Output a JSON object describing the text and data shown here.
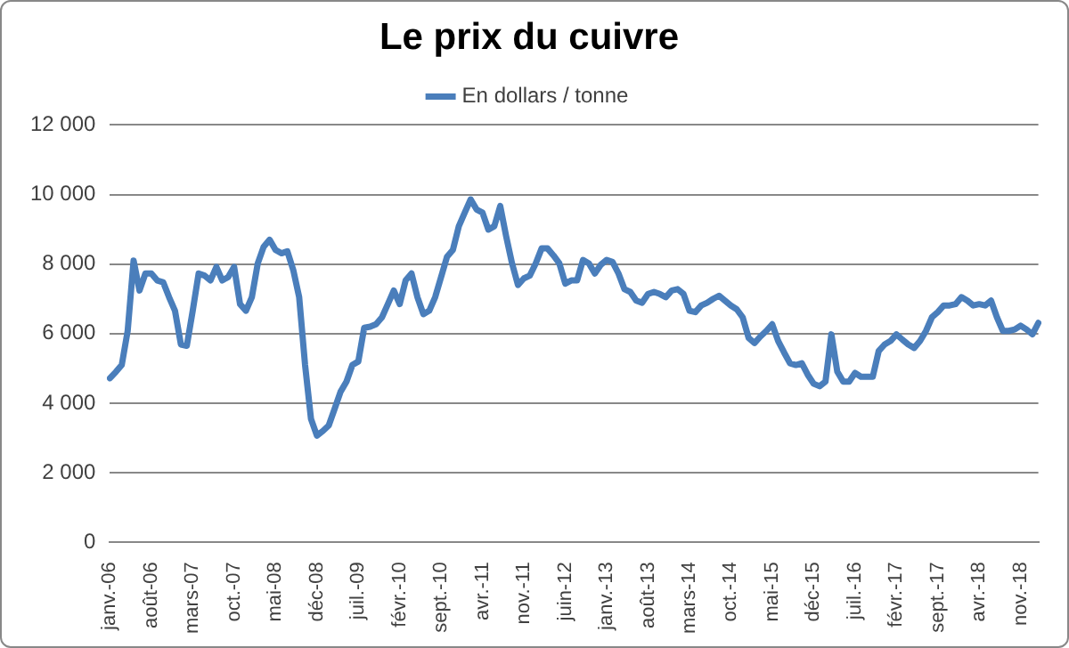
{
  "chart_data": {
    "type": "line",
    "title": "Le prix du cuivre",
    "categories": [
      "janv.-06",
      null,
      null,
      null,
      null,
      null,
      null,
      "août-06",
      null,
      null,
      null,
      null,
      null,
      null,
      "mars-07",
      null,
      null,
      null,
      null,
      null,
      null,
      "oct.-07",
      null,
      null,
      null,
      null,
      null,
      null,
      "mai-08",
      null,
      null,
      null,
      null,
      null,
      null,
      "déc-08",
      null,
      null,
      null,
      null,
      null,
      null,
      "juil.-09",
      null,
      null,
      null,
      null,
      null,
      null,
      "févr.-10",
      null,
      null,
      null,
      null,
      null,
      null,
      "sept.-10",
      null,
      null,
      null,
      null,
      null,
      null,
      "avr.-11",
      null,
      null,
      null,
      null,
      null,
      null,
      "nov.-11",
      null,
      null,
      null,
      null,
      null,
      null,
      "juin-12",
      null,
      null,
      null,
      null,
      null,
      null,
      "janv.-13",
      null,
      null,
      null,
      null,
      null,
      null,
      "août-13",
      null,
      null,
      null,
      null,
      null,
      null,
      "mars-14",
      null,
      null,
      null,
      null,
      null,
      null,
      "oct.-14",
      null,
      null,
      null,
      null,
      null,
      null,
      "mai-15",
      null,
      null,
      null,
      null,
      null,
      null,
      "déc-15",
      null,
      null,
      null,
      null,
      null,
      null,
      "juil.-16",
      null,
      null,
      null,
      null,
      null,
      null,
      "févr.-17",
      null,
      null,
      null,
      null,
      null,
      null,
      "sept.-17",
      null,
      null,
      null,
      null,
      null,
      null,
      "avr.-18",
      null,
      null,
      null,
      null,
      null,
      null,
      "nov.-18",
      null,
      null,
      null
    ],
    "series": [
      {
        "name": "En dollars / tonne",
        "color": "#4a7ebb",
        "values": [
          4720,
          4900,
          5100,
          6080,
          8100,
          7240,
          7730,
          7730,
          7530,
          7480,
          7050,
          6660,
          5690,
          5650,
          6660,
          7730,
          7670,
          7530,
          7920,
          7530,
          7630,
          7920,
          6850,
          6660,
          7050,
          8020,
          8500,
          8700,
          8410,
          8310,
          8370,
          7830,
          7050,
          5100,
          3550,
          3070,
          3200,
          3360,
          3840,
          4330,
          4620,
          5100,
          5200,
          6170,
          6200,
          6270,
          6470,
          6850,
          7240,
          6850,
          7530,
          7730,
          7050,
          6560,
          6660,
          7050,
          7630,
          8210,
          8410,
          9090,
          9480,
          9860,
          9570,
          9480,
          8990,
          9090,
          9670,
          8800,
          8020,
          7400,
          7590,
          7670,
          8020,
          8450,
          8450,
          8250,
          8020,
          7440,
          7530,
          7530,
          8120,
          8020,
          7730,
          7980,
          8120,
          8060,
          7730,
          7280,
          7200,
          6950,
          6890,
          7140,
          7200,
          7140,
          7050,
          7240,
          7280,
          7140,
          6660,
          6620,
          6810,
          6890,
          7000,
          7090,
          6950,
          6810,
          6700,
          6470,
          5880,
          5730,
          5920,
          6080,
          6270,
          5790,
          5460,
          5150,
          5100,
          5150,
          4820,
          4560,
          4490,
          4620,
          5980,
          4910,
          4620,
          4620,
          4870,
          4760,
          4760,
          4760,
          5500,
          5690,
          5790,
          5980,
          5830,
          5690,
          5590,
          5790,
          6080,
          6470,
          6620,
          6810,
          6810,
          6850,
          7050,
          6950,
          6810,
          6850,
          6810,
          6950,
          6470,
          6080,
          6080,
          6120,
          6230,
          6120,
          5980,
          6310
        ]
      }
    ],
    "ylim": [
      0,
      12000
    ],
    "yticks": [
      0,
      {
        "value": 2000,
        "label": "2 000"
      },
      {
        "value": 4000,
        "label": "4 000"
      },
      {
        "value": 6000,
        "label": "6 000"
      },
      {
        "value": 8000,
        "label": "8 000"
      },
      {
        "value": 10000,
        "label": "10 000"
      },
      {
        "value": 12000,
        "label": "12 000"
      }
    ],
    "grid": "y",
    "legend": "top",
    "marker": "none",
    "line_style": "solid"
  }
}
